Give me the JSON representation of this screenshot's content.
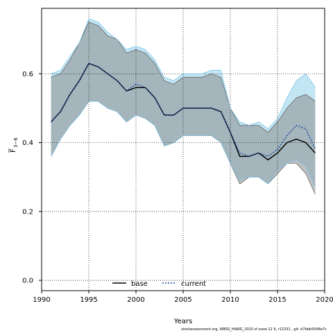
{
  "chart_data": {
    "type": "area",
    "xlabel": "Years",
    "ylabel_main": "F",
    "ylabel_sub": "3−6",
    "xlim": [
      1990,
      2020
    ],
    "ylim": [
      -0.03,
      0.79
    ],
    "xticks": [
      1990,
      1995,
      2000,
      2005,
      2010,
      2015,
      2020
    ],
    "xtick_labels": [
      "1990",
      "1995",
      "2000",
      "2005",
      "2010",
      "2015",
      "2020"
    ],
    "yticks": [
      0.0,
      0.2,
      0.4,
      0.6
    ],
    "ytick_labels": [
      "0.0",
      "0.2",
      "0.4",
      "0.6"
    ],
    "grid": true,
    "legend_position": "bottom-center",
    "credit": "stockassessment.org, WBSS_HAWG_2020 sf  ssew 12 9, r12331 , git: b7bbb5048e7c",
    "x": [
      1991,
      1992,
      1993,
      1994,
      1995,
      1996,
      1997,
      1998,
      1999,
      2000,
      2001,
      2002,
      2003,
      2004,
      2005,
      2006,
      2007,
      2008,
      2009,
      2010,
      2011,
      2012,
      2013,
      2014,
      2015,
      2016,
      2017,
      2018,
      2019
    ],
    "series": [
      {
        "name": "base",
        "color": "#000000",
        "line_style": "solid",
        "band_color": "#8c8c8c",
        "values": [
          0.46,
          0.49,
          0.54,
          0.58,
          0.63,
          0.62,
          0.6,
          0.58,
          0.55,
          0.56,
          0.56,
          0.53,
          0.48,
          0.48,
          0.5,
          0.5,
          0.5,
          0.5,
          0.49,
          0.43,
          0.36,
          0.36,
          0.37,
          0.35,
          0.37,
          0.4,
          0.41,
          0.4,
          0.37
        ],
        "lower": [
          0.36,
          0.41,
          0.45,
          0.48,
          0.52,
          0.52,
          0.5,
          0.49,
          0.46,
          0.48,
          0.47,
          0.45,
          0.39,
          0.4,
          0.42,
          0.42,
          0.42,
          0.42,
          0.4,
          0.34,
          0.28,
          0.3,
          0.3,
          0.28,
          0.31,
          0.34,
          0.34,
          0.31,
          0.25
        ],
        "upper": [
          0.59,
          0.6,
          0.64,
          0.69,
          0.75,
          0.74,
          0.71,
          0.7,
          0.66,
          0.67,
          0.66,
          0.63,
          0.58,
          0.57,
          0.59,
          0.59,
          0.59,
          0.6,
          0.59,
          0.5,
          0.45,
          0.45,
          0.45,
          0.43,
          0.46,
          0.5,
          0.53,
          0.54,
          0.52
        ]
      },
      {
        "name": "current",
        "color": "#1f4e9c",
        "line_style": "dotted",
        "band_color": "#87ceeb",
        "values": [
          0.46,
          0.49,
          0.54,
          0.58,
          0.63,
          0.62,
          0.6,
          0.58,
          0.55,
          0.57,
          0.56,
          0.53,
          0.48,
          0.48,
          0.5,
          0.5,
          0.5,
          0.5,
          0.49,
          0.43,
          0.37,
          0.36,
          0.37,
          0.36,
          0.38,
          0.42,
          0.45,
          0.44,
          0.38
        ],
        "lower": [
          0.36,
          0.41,
          0.45,
          0.48,
          0.52,
          0.52,
          0.5,
          0.49,
          0.46,
          0.48,
          0.47,
          0.45,
          0.39,
          0.4,
          0.42,
          0.42,
          0.42,
          0.42,
          0.4,
          0.34,
          0.29,
          0.3,
          0.3,
          0.28,
          0.32,
          0.34,
          0.35,
          0.33,
          0.27
        ],
        "upper": [
          0.6,
          0.61,
          0.65,
          0.69,
          0.76,
          0.75,
          0.72,
          0.7,
          0.67,
          0.68,
          0.67,
          0.64,
          0.59,
          0.58,
          0.6,
          0.6,
          0.6,
          0.61,
          0.61,
          0.5,
          0.46,
          0.45,
          0.46,
          0.44,
          0.47,
          0.53,
          0.58,
          0.6,
          0.56
        ]
      }
    ]
  }
}
